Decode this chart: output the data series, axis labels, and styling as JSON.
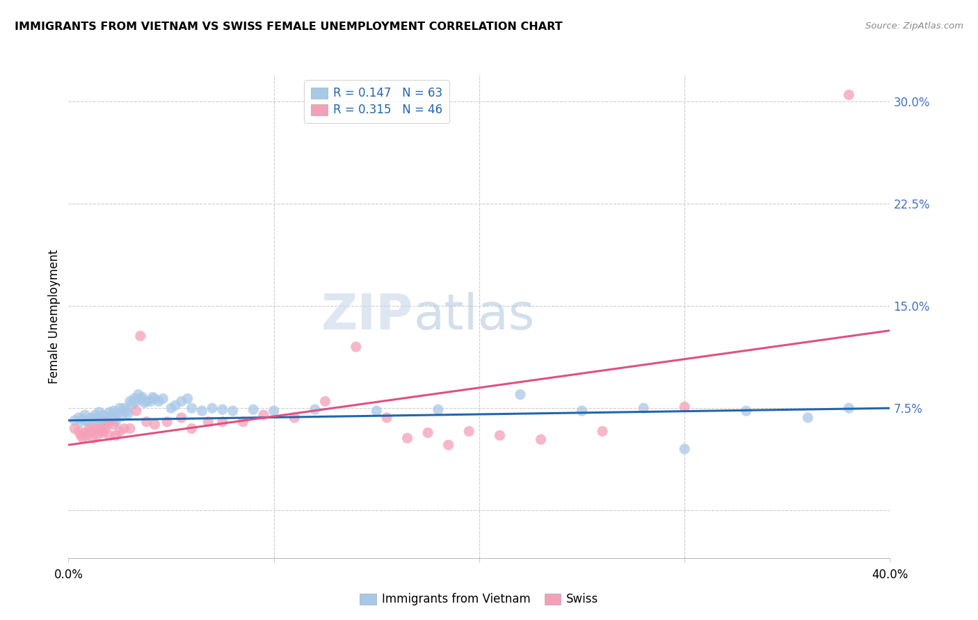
{
  "title": "IMMIGRANTS FROM VIETNAM VS SWISS FEMALE UNEMPLOYMENT CORRELATION CHART",
  "source": "Source: ZipAtlas.com",
  "ylabel": "Female Unemployment",
  "xlim": [
    0.0,
    0.4
  ],
  "ylim": [
    -0.035,
    0.32
  ],
  "yticks": [
    0.0,
    0.075,
    0.15,
    0.225,
    0.3
  ],
  "ytick_labels": [
    "",
    "7.5%",
    "15.0%",
    "22.5%",
    "30.0%"
  ],
  "blue_color": "#a8c8e8",
  "pink_color": "#f4a0b8",
  "blue_line_color": "#2166ac",
  "pink_line_color": "#e05080",
  "tick_color": "#4472c4",
  "legend_R_blue": "0.147",
  "legend_N_blue": "63",
  "legend_R_pink": "0.315",
  "legend_N_pink": "46",
  "watermark_zip": "ZIP",
  "watermark_atlas": "atlas",
  "blue_scatter_x": [
    0.003,
    0.005,
    0.006,
    0.007,
    0.008,
    0.009,
    0.01,
    0.011,
    0.012,
    0.013,
    0.014,
    0.015,
    0.015,
    0.016,
    0.017,
    0.018,
    0.019,
    0.02,
    0.021,
    0.022,
    0.022,
    0.023,
    0.024,
    0.025,
    0.026,
    0.027,
    0.028,
    0.029,
    0.03,
    0.031,
    0.032,
    0.033,
    0.034,
    0.035,
    0.036,
    0.037,
    0.038,
    0.04,
    0.041,
    0.042,
    0.044,
    0.046,
    0.05,
    0.052,
    0.055,
    0.058,
    0.06,
    0.065,
    0.07,
    0.075,
    0.08,
    0.09,
    0.1,
    0.12,
    0.15,
    0.18,
    0.22,
    0.25,
    0.28,
    0.3,
    0.33,
    0.36,
    0.38
  ],
  "blue_scatter_y": [
    0.066,
    0.068,
    0.065,
    0.067,
    0.07,
    0.066,
    0.065,
    0.068,
    0.067,
    0.07,
    0.065,
    0.068,
    0.072,
    0.066,
    0.07,
    0.065,
    0.068,
    0.072,
    0.069,
    0.067,
    0.073,
    0.065,
    0.071,
    0.075,
    0.069,
    0.075,
    0.073,
    0.071,
    0.08,
    0.078,
    0.082,
    0.08,
    0.085,
    0.082,
    0.083,
    0.079,
    0.08,
    0.08,
    0.083,
    0.082,
    0.08,
    0.082,
    0.075,
    0.077,
    0.08,
    0.082,
    0.075,
    0.073,
    0.075,
    0.074,
    0.073,
    0.074,
    0.073,
    0.074,
    0.073,
    0.074,
    0.085,
    0.073,
    0.075,
    0.045,
    0.073,
    0.068,
    0.075
  ],
  "pink_scatter_x": [
    0.003,
    0.005,
    0.006,
    0.007,
    0.008,
    0.009,
    0.01,
    0.011,
    0.012,
    0.013,
    0.014,
    0.015,
    0.016,
    0.017,
    0.018,
    0.019,
    0.02,
    0.022,
    0.023,
    0.025,
    0.027,
    0.03,
    0.033,
    0.035,
    0.038,
    0.042,
    0.048,
    0.055,
    0.06,
    0.068,
    0.075,
    0.085,
    0.095,
    0.11,
    0.125,
    0.14,
    0.155,
    0.165,
    0.175,
    0.185,
    0.195,
    0.21,
    0.23,
    0.26,
    0.3,
    0.38
  ],
  "pink_scatter_y": [
    0.06,
    0.058,
    0.055,
    0.053,
    0.057,
    0.055,
    0.06,
    0.058,
    0.053,
    0.06,
    0.055,
    0.06,
    0.058,
    0.057,
    0.06,
    0.063,
    0.055,
    0.063,
    0.055,
    0.058,
    0.06,
    0.06,
    0.073,
    0.128,
    0.065,
    0.063,
    0.065,
    0.068,
    0.06,
    0.065,
    0.065,
    0.065,
    0.07,
    0.068,
    0.08,
    0.12,
    0.068,
    0.053,
    0.057,
    0.048,
    0.058,
    0.055,
    0.052,
    0.058,
    0.076,
    0.305
  ],
  "blue_trend_x": [
    0.0,
    0.4
  ],
  "blue_trend_y": [
    0.066,
    0.075
  ],
  "pink_trend_x": [
    0.0,
    0.4
  ],
  "pink_trend_y": [
    0.048,
    0.132
  ]
}
